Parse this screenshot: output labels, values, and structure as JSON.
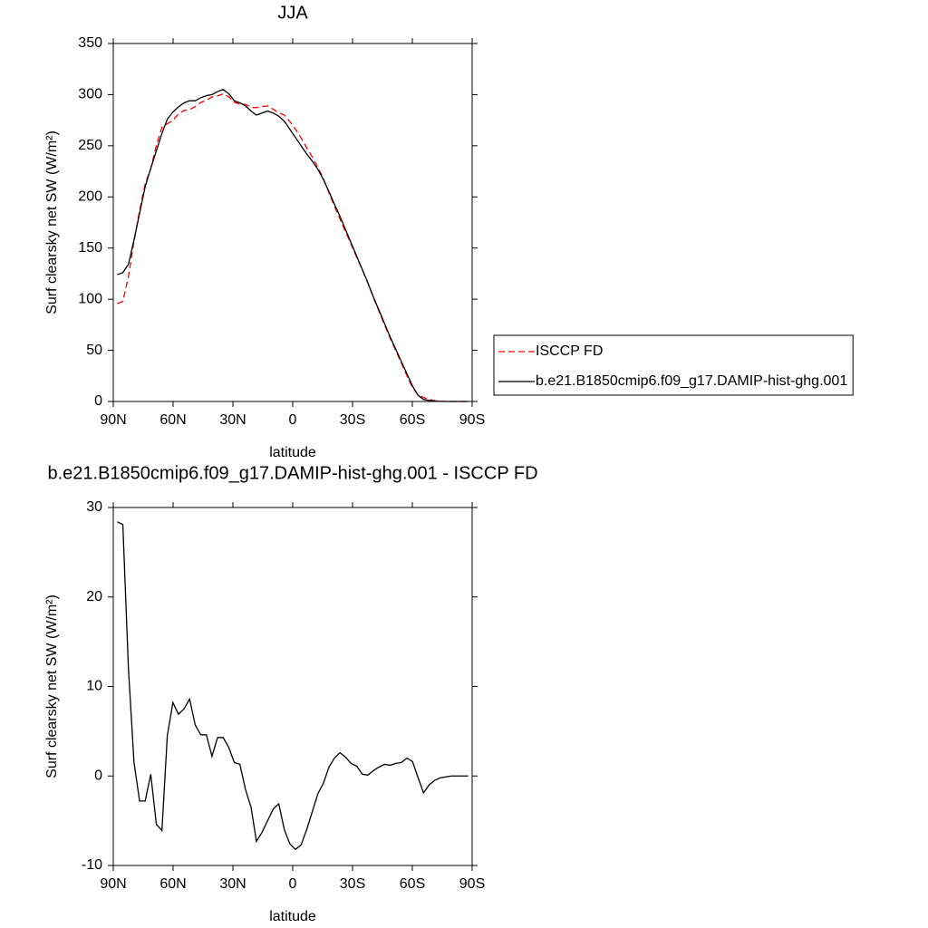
{
  "chart_data": [
    {
      "type": "line",
      "title": "JJA",
      "xlabel": "latitude",
      "ylabel": "Surf clearsky net SW (W/m²)",
      "x": [
        88,
        85.2,
        82.4,
        79.6,
        76.8,
        74.0,
        71.2,
        68.4,
        65.6,
        62.9,
        60.1,
        57.3,
        54.5,
        51.7,
        48.9,
        46.1,
        43.3,
        40.5,
        37.7,
        34.9,
        32.1,
        29.3,
        26.5,
        23.7,
        20.9,
        18.2,
        15.4,
        12.6,
        9.8,
        7.0,
        4.2,
        1.4,
        -1.4,
        -4.2,
        -7.0,
        -9.8,
        -12.6,
        -15.4,
        -18.2,
        -20.9,
        -23.7,
        -26.5,
        -29.3,
        -32.1,
        -34.9,
        -37.7,
        -40.5,
        -43.3,
        -46.1,
        -48.9,
        -51.7,
        -54.5,
        -57.3,
        -60.1,
        -62.9,
        -65.6,
        -68.4,
        -71.2,
        -74.0,
        -76.8,
        -79.6,
        -82.4,
        -85.2,
        -88
      ],
      "series": [
        {
          "name": "ISCCP FD",
          "color": "#ff0000",
          "line_style": "dashed",
          "values": [
            95.6,
            97.9,
            122,
            156.5,
            186.8,
            212.8,
            227.8,
            250.4,
            268.1,
            271.5,
            274.8,
            281.1,
            284.5,
            285.4,
            288.3,
            292.4,
            294.4,
            297.8,
            298.7,
            300.7,
            297.8,
            292.5,
            290.7,
            290.5,
            287.5,
            287.3,
            288.3,
            289,
            285.7,
            282.1,
            280,
            273.6,
            266.2,
            257.7,
            248,
            239,
            229,
            217.8,
            204,
            191,
            178.4,
            165.9,
            153.6,
            140.9,
            128.8,
            115.9,
            101.4,
            88,
            74.7,
            61.8,
            49.6,
            37.5,
            25,
            13.4,
            6.2,
            3.9,
            2,
            0.9,
            0.3,
            0.1,
            0,
            0,
            0,
            0
          ]
        },
        {
          "name": "b.e21.B1850cmip6.f09_g17.DAMIP-hist-ghg.001",
          "color": "#000000",
          "line_style": "solid",
          "values": [
            124,
            126,
            134,
            158,
            184,
            210,
            228,
            245,
            262,
            276,
            283,
            288,
            292,
            294,
            294,
            297,
            299,
            300,
            303,
            305,
            301,
            294,
            292,
            289,
            284,
            280,
            282,
            284,
            282,
            279,
            274,
            266,
            258,
            250,
            242,
            235,
            227,
            217,
            205,
            193,
            181,
            168,
            155,
            142,
            129,
            116,
            102,
            89,
            76,
            63,
            51,
            39,
            27,
            15,
            6,
            2,
            1,
            0.4,
            0.1,
            0,
            0,
            0,
            0,
            0
          ]
        }
      ],
      "xlim": [
        90,
        -90
      ],
      "xticks": [
        {
          "value": 90,
          "label": "90N"
        },
        {
          "value": 60,
          "label": "60N"
        },
        {
          "value": 30,
          "label": "30N"
        },
        0,
        {
          "value": -30,
          "label": "30S"
        },
        {
          "value": -60,
          "label": "60S"
        },
        {
          "value": -90,
          "label": "90S"
        }
      ],
      "ylim": [
        0,
        350
      ],
      "yticks": [
        0,
        50,
        100,
        150,
        200,
        250,
        300,
        350
      ],
      "legend": "right"
    },
    {
      "type": "line",
      "title": "b.e21.B1850cmip6.f09_g17.DAMIP-hist-ghg.001 - ISCCP FD",
      "xlabel": "latitude",
      "ylabel": "Surf clearsky net SW (W/m²)",
      "x": [
        88,
        85.2,
        82.4,
        79.6,
        76.8,
        74.0,
        71.2,
        68.4,
        65.6,
        62.9,
        60.1,
        57.3,
        54.5,
        51.7,
        48.9,
        46.1,
        43.3,
        40.5,
        37.7,
        34.9,
        32.1,
        29.3,
        26.5,
        23.7,
        20.9,
        18.2,
        15.4,
        12.6,
        9.8,
        7.0,
        4.2,
        1.4,
        -1.4,
        -4.2,
        -7.0,
        -9.8,
        -12.6,
        -15.4,
        -18.2,
        -20.9,
        -23.7,
        -26.5,
        -29.3,
        -32.1,
        -34.9,
        -37.7,
        -40.5,
        -43.3,
        -46.1,
        -48.9,
        -51.7,
        -54.5,
        -57.3,
        -60.1,
        -62.9,
        -65.6,
        -68.4,
        -71.2,
        -74.0,
        -76.8,
        -79.6,
        -82.4,
        -85.2,
        -88
      ],
      "values": [
        28.4,
        28.1,
        12,
        1.5,
        -2.8,
        -2.8,
        0.2,
        -5.4,
        -6.1,
        4.5,
        8.2,
        6.9,
        7.5,
        8.6,
        5.7,
        4.6,
        4.6,
        2.2,
        4.3,
        4.3,
        3.2,
        1.5,
        1.3,
        -1.5,
        -3.5,
        -7.3,
        -6.3,
        -5,
        -3.7,
        -3.1,
        -6,
        -7.6,
        -8.2,
        -7.7,
        -6,
        -4,
        -2,
        -0.8,
        1,
        2,
        2.6,
        2.1,
        1.4,
        1.1,
        0.2,
        0.1,
        0.6,
        1,
        1.3,
        1.2,
        1.4,
        1.5,
        2,
        1.6,
        -0.2,
        -1.9,
        -1,
        -0.5,
        -0.2,
        -0.1,
        0,
        0,
        0,
        0
      ],
      "color": "#000000",
      "xlim": [
        90,
        -90
      ],
      "xticks": [
        {
          "value": 90,
          "label": "90N"
        },
        {
          "value": 60,
          "label": "60N"
        },
        {
          "value": 30,
          "label": "30N"
        },
        0,
        {
          "value": -30,
          "label": "30S"
        },
        {
          "value": -60,
          "label": "60S"
        },
        {
          "value": -90,
          "label": "90S"
        }
      ],
      "ylim": [
        -10,
        30
      ],
      "yticks": [
        -10,
        0,
        10,
        20,
        30
      ]
    }
  ]
}
